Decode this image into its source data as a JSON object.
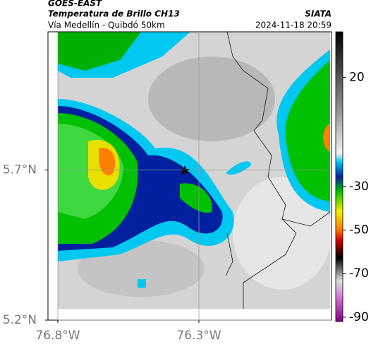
{
  "title": "GOES-EAST",
  "subtitle": "Temperatura de Brillo CH13",
  "location": "Vía Medellín - Quibdó 50km",
  "source": "SIATA",
  "datetime": "2024-11-18 20:59",
  "map": {
    "xlim": [
      -76.8,
      -75.83
    ],
    "ylim": [
      5.2,
      6.16
    ],
    "xticks": [
      {
        "value": -76.8,
        "label": "76.8°W"
      },
      {
        "value": -76.3,
        "label": "76.3°W"
      }
    ],
    "yticks": [
      {
        "value": 5.2,
        "label": "5.2°N"
      },
      {
        "value": 5.7,
        "label": "5.7°N"
      }
    ],
    "grid": true
  },
  "colorbar": {
    "ylim": [
      -92,
      41
    ],
    "yticks": [
      20,
      -30,
      -50,
      -70,
      -90
    ]
  }
}
